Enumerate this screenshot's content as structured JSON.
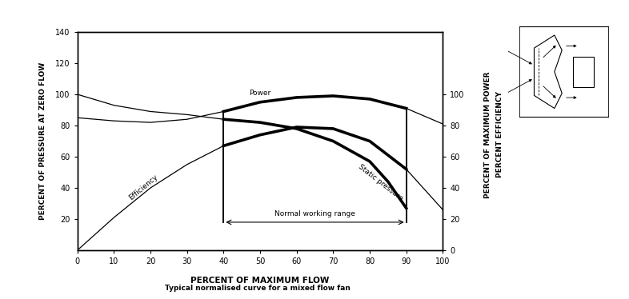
{
  "chart_data": {
    "type": "line",
    "title": "Typical normalised curve for a mixed flow fan",
    "xlabel": "PERCENT OF MAXIMUM FLOW",
    "ylabel": "PERCENT OF PRESSURE AT ZERO FLOW",
    "y2label": [
      "PERCENT OF MAXIMUM POWER",
      "PERCENT EFFICIENCY"
    ],
    "xlim": [
      0,
      100
    ],
    "xticks": [
      0,
      10,
      20,
      30,
      40,
      50,
      60,
      70,
      80,
      90,
      100
    ],
    "ylim": [
      0,
      140
    ],
    "yticks": [
      20,
      40,
      60,
      80,
      100,
      120,
      140
    ],
    "y2lim": [
      0,
      140
    ],
    "y2ticks": [
      0,
      20,
      40,
      60,
      80,
      100
    ],
    "grid": false,
    "series": [
      {
        "name": "Power",
        "color": "#000000",
        "axis": "y2",
        "x": [
          0,
          10,
          20,
          30,
          40,
          50,
          60,
          70,
          80,
          90,
          100
        ],
        "values": [
          85,
          83,
          82,
          84,
          89,
          95,
          98,
          99,
          97,
          91,
          81
        ]
      },
      {
        "name": "Static pressure",
        "color": "#000000",
        "axis": "y",
        "x": [
          0,
          10,
          20,
          30,
          40,
          50,
          60,
          70,
          80,
          85,
          90
        ],
        "values": [
          100,
          93,
          89,
          87,
          84,
          82,
          78,
          70,
          57,
          44,
          27
        ]
      },
      {
        "name": "Efficiency",
        "color": "#000000",
        "axis": "y2",
        "x": [
          0,
          10,
          20,
          30,
          40,
          50,
          60,
          70,
          80,
          90,
          100
        ],
        "values": [
          0,
          21,
          40,
          55,
          67,
          74,
          79,
          78,
          70,
          52,
          26
        ]
      }
    ],
    "working_range": {
      "label": "Normal working range",
      "x": [
        40,
        90
      ],
      "y": 18
    }
  }
}
